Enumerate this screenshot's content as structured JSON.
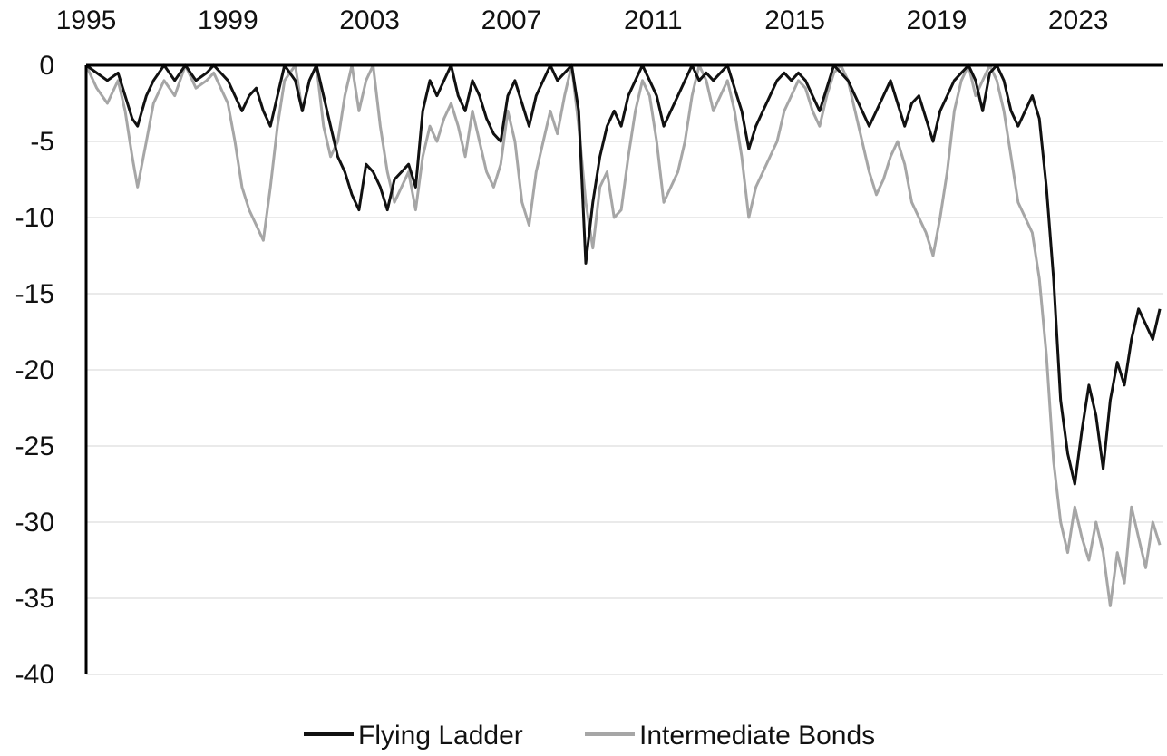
{
  "chart_data": {
    "type": "line",
    "title": "",
    "xlabel": "",
    "ylabel": "",
    "xlim": [
      1995,
      2025.4
    ],
    "ylim": [
      -40,
      0
    ],
    "x_ticks": [
      "1995",
      "1999",
      "2003",
      "2007",
      "2011",
      "2015",
      "2019",
      "2023"
    ],
    "y_ticks": [
      "0",
      "-5",
      "-10",
      "-15",
      "-20",
      "-25",
      "-30",
      "-35",
      "-40"
    ],
    "grid": true,
    "x_axis_position": "top",
    "legend": {
      "position": "bottom"
    },
    "series": [
      {
        "name": "Intermediate Bonds",
        "color": "#a6a6a6",
        "x": [
          1995.0,
          1995.3,
          1995.6,
          1995.9,
          1996.1,
          1996.3,
          1996.45,
          1996.7,
          1996.9,
          1997.2,
          1997.5,
          1997.8,
          1998.1,
          1998.4,
          1998.6,
          1998.8,
          1999.0,
          1999.2,
          1999.4,
          1999.6,
          1999.8,
          2000.0,
          2000.2,
          2000.4,
          2000.6,
          2000.9,
          2001.1,
          2001.3,
          2001.5,
          2001.7,
          2001.9,
          2002.1,
          2002.3,
          2002.5,
          2002.7,
          2002.9,
          2003.1,
          2003.3,
          2003.5,
          2003.7,
          2003.9,
          2004.1,
          2004.3,
          2004.5,
          2004.7,
          2004.9,
          2005.1,
          2005.3,
          2005.5,
          2005.7,
          2005.9,
          2006.1,
          2006.3,
          2006.5,
          2006.7,
          2006.9,
          2007.1,
          2007.3,
          2007.5,
          2007.7,
          2007.9,
          2008.1,
          2008.3,
          2008.5,
          2008.7,
          2008.9,
          2009.1,
          2009.3,
          2009.5,
          2009.7,
          2009.9,
          2010.1,
          2010.3,
          2010.5,
          2010.7,
          2010.9,
          2011.1,
          2011.3,
          2011.5,
          2011.7,
          2011.9,
          2012.1,
          2012.3,
          2012.5,
          2012.7,
          2012.9,
          2013.1,
          2013.3,
          2013.5,
          2013.7,
          2013.9,
          2014.1,
          2014.3,
          2014.5,
          2014.7,
          2014.9,
          2015.1,
          2015.3,
          2015.5,
          2015.7,
          2015.9,
          2016.1,
          2016.3,
          2016.5,
          2016.7,
          2016.9,
          2017.1,
          2017.3,
          2017.5,
          2017.7,
          2017.9,
          2018.1,
          2018.3,
          2018.5,
          2018.7,
          2018.9,
          2019.1,
          2019.3,
          2019.5,
          2019.7,
          2019.9,
          2020.1,
          2020.3,
          2020.5,
          2020.7,
          2020.9,
          2021.1,
          2021.3,
          2021.5,
          2021.7,
          2021.9,
          2022.1,
          2022.3,
          2022.5,
          2022.7,
          2022.9,
          2023.1,
          2023.3,
          2023.5,
          2023.7,
          2023.9,
          2024.1,
          2024.3,
          2024.5,
          2024.7,
          2024.9,
          2025.1,
          2025.3
        ],
        "y": [
          0.0,
          -1.5,
          -2.5,
          -1.0,
          -3.0,
          -6.0,
          -8.0,
          -5.0,
          -2.5,
          -1.0,
          -2.0,
          0.0,
          -1.5,
          -1.0,
          -0.5,
          -1.5,
          -2.5,
          -5.0,
          -8.0,
          -9.5,
          -10.5,
          -11.5,
          -8.0,
          -4.0,
          -1.0,
          0.0,
          -3.0,
          -1.0,
          0.0,
          -4.0,
          -6.0,
          -5.0,
          -2.0,
          0.0,
          -3.0,
          -1.0,
          0.0,
          -4.0,
          -7.0,
          -9.0,
          -8.0,
          -7.0,
          -9.5,
          -6.0,
          -4.0,
          -5.0,
          -3.5,
          -2.5,
          -4.0,
          -6.0,
          -3.0,
          -5.0,
          -7.0,
          -8.0,
          -6.5,
          -3.0,
          -5.0,
          -9.0,
          -10.5,
          -7.0,
          -5.0,
          -3.0,
          -4.5,
          -2.0,
          0.0,
          -4.0,
          -9.0,
          -12.0,
          -8.0,
          -7.0,
          -10.0,
          -9.5,
          -6.0,
          -3.0,
          -1.0,
          -2.0,
          -5.0,
          -9.0,
          -8.0,
          -7.0,
          -5.0,
          -2.0,
          0.0,
          -1.0,
          -3.0,
          -2.0,
          -1.0,
          -3.0,
          -6.0,
          -10.0,
          -8.0,
          -7.0,
          -6.0,
          -5.0,
          -3.0,
          -2.0,
          -1.0,
          -1.5,
          -3.0,
          -4.0,
          -2.0,
          -0.5,
          0.0,
          -1.0,
          -3.0,
          -5.0,
          -7.0,
          -8.5,
          -7.5,
          -6.0,
          -5.0,
          -6.5,
          -9.0,
          -10.0,
          -11.0,
          -12.5,
          -10.0,
          -7.0,
          -3.0,
          -1.0,
          0.0,
          -2.0,
          -1.0,
          0.0,
          -1.0,
          -3.0,
          -6.0,
          -9.0,
          -10.0,
          -11.0,
          -14.0,
          -19.0,
          -26.0,
          -30.0,
          -32.0,
          -29.0,
          -31.0,
          -32.5,
          -30.0,
          -32.0,
          -35.5,
          -32.0,
          -34.0,
          -29.0,
          -31.0,
          -33.0,
          -30.0,
          -31.5
        ]
      },
      {
        "name": "Flying Ladder",
        "color": "#111111",
        "x": [
          1995.0,
          1995.3,
          1995.6,
          1995.9,
          1996.1,
          1996.3,
          1996.45,
          1996.7,
          1996.9,
          1997.2,
          1997.5,
          1997.8,
          1998.1,
          1998.4,
          1998.6,
          1998.8,
          1999.0,
          1999.2,
          1999.4,
          1999.6,
          1999.8,
          2000.0,
          2000.2,
          2000.4,
          2000.6,
          2000.9,
          2001.1,
          2001.3,
          2001.5,
          2001.7,
          2001.9,
          2002.1,
          2002.3,
          2002.5,
          2002.7,
          2002.9,
          2003.1,
          2003.3,
          2003.5,
          2003.7,
          2003.9,
          2004.1,
          2004.3,
          2004.5,
          2004.7,
          2004.9,
          2005.1,
          2005.3,
          2005.5,
          2005.7,
          2005.9,
          2006.1,
          2006.3,
          2006.5,
          2006.7,
          2006.9,
          2007.1,
          2007.3,
          2007.5,
          2007.7,
          2007.9,
          2008.1,
          2008.3,
          2008.5,
          2008.7,
          2008.9,
          2009.1,
          2009.3,
          2009.5,
          2009.7,
          2009.9,
          2010.1,
          2010.3,
          2010.5,
          2010.7,
          2010.9,
          2011.1,
          2011.3,
          2011.5,
          2011.7,
          2011.9,
          2012.1,
          2012.3,
          2012.5,
          2012.7,
          2012.9,
          2013.1,
          2013.3,
          2013.5,
          2013.7,
          2013.9,
          2014.1,
          2014.3,
          2014.5,
          2014.7,
          2014.9,
          2015.1,
          2015.3,
          2015.5,
          2015.7,
          2015.9,
          2016.1,
          2016.3,
          2016.5,
          2016.7,
          2016.9,
          2017.1,
          2017.3,
          2017.5,
          2017.7,
          2017.9,
          2018.1,
          2018.3,
          2018.5,
          2018.7,
          2018.9,
          2019.1,
          2019.3,
          2019.5,
          2019.7,
          2019.9,
          2020.1,
          2020.3,
          2020.5,
          2020.7,
          2020.9,
          2021.1,
          2021.3,
          2021.5,
          2021.7,
          2021.9,
          2022.1,
          2022.3,
          2022.5,
          2022.7,
          2022.9,
          2023.1,
          2023.3,
          2023.5,
          2023.7,
          2023.9,
          2024.1,
          2024.3,
          2024.5,
          2024.7,
          2024.9,
          2025.1,
          2025.3
        ],
        "y": [
          0.0,
          -0.5,
          -1.0,
          -0.5,
          -2.0,
          -3.5,
          -4.0,
          -2.0,
          -1.0,
          0.0,
          -1.0,
          0.0,
          -1.0,
          -0.5,
          0.0,
          -0.5,
          -1.0,
          -2.0,
          -3.0,
          -2.0,
          -1.5,
          -3.0,
          -4.0,
          -2.0,
          0.0,
          -1.0,
          -3.0,
          -1.0,
          0.0,
          -2.0,
          -4.0,
          -6.0,
          -7.0,
          -8.5,
          -9.5,
          -6.5,
          -7.0,
          -8.0,
          -9.5,
          -7.5,
          -7.0,
          -6.5,
          -8.0,
          -3.0,
          -1.0,
          -2.0,
          -1.0,
          0.0,
          -2.0,
          -3.0,
          -1.0,
          -2.0,
          -3.5,
          -4.5,
          -5.0,
          -2.0,
          -1.0,
          -2.5,
          -4.0,
          -2.0,
          -1.0,
          0.0,
          -1.0,
          -0.5,
          0.0,
          -3.0,
          -13.0,
          -9.0,
          -6.0,
          -4.0,
          -3.0,
          -4.0,
          -2.0,
          -1.0,
          0.0,
          -1.0,
          -2.0,
          -4.0,
          -3.0,
          -2.0,
          -1.0,
          0.0,
          -1.0,
          -0.5,
          -1.0,
          -0.5,
          0.0,
          -1.5,
          -3.0,
          -5.5,
          -4.0,
          -3.0,
          -2.0,
          -1.0,
          -0.5,
          -1.0,
          -0.5,
          -1.0,
          -2.0,
          -3.0,
          -1.5,
          0.0,
          -0.5,
          -1.0,
          -2.0,
          -3.0,
          -4.0,
          -3.0,
          -2.0,
          -1.0,
          -2.5,
          -4.0,
          -2.5,
          -2.0,
          -3.5,
          -5.0,
          -3.0,
          -2.0,
          -1.0,
          -0.5,
          0.0,
          -1.0,
          -3.0,
          -0.5,
          0.0,
          -1.0,
          -3.0,
          -4.0,
          -3.0,
          -2.0,
          -3.5,
          -8.0,
          -14.0,
          -22.0,
          -25.5,
          -27.5,
          -24.0,
          -21.0,
          -23.0,
          -26.5,
          -22.0,
          -19.5,
          -21.0,
          -18.0,
          -16.0,
          -17.0,
          -18.0,
          -16.0
        ]
      }
    ]
  }
}
